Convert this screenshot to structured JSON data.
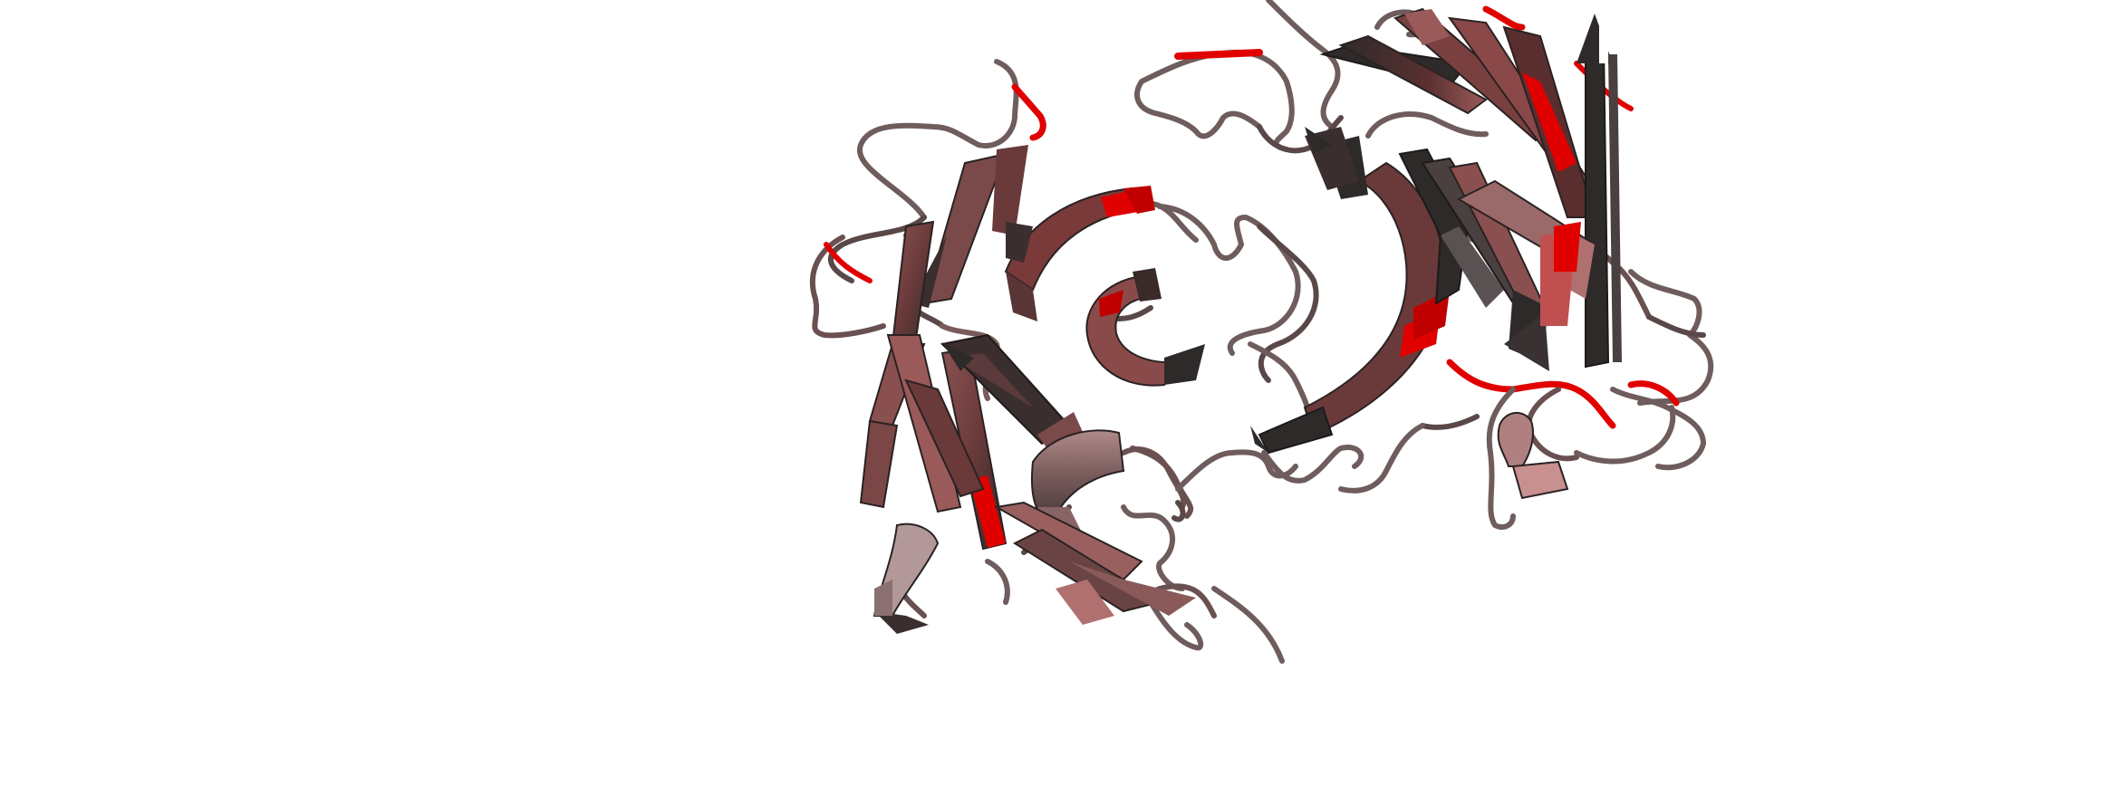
{
  "scene": {
    "background": "#ffffff",
    "subject": "protein-ribbon-cartoon",
    "coloring": {
      "coil": "#6f5c5c",
      "coil_dark": "#4a3d3d",
      "strand_dark": "#2e2a2a",
      "strand_mid": "#7a4848",
      "strand_light": "#b07a7a",
      "helix": "#8a6a6a",
      "helix_light": "#c9a0a0",
      "highlight": "#e00000"
    }
  }
}
